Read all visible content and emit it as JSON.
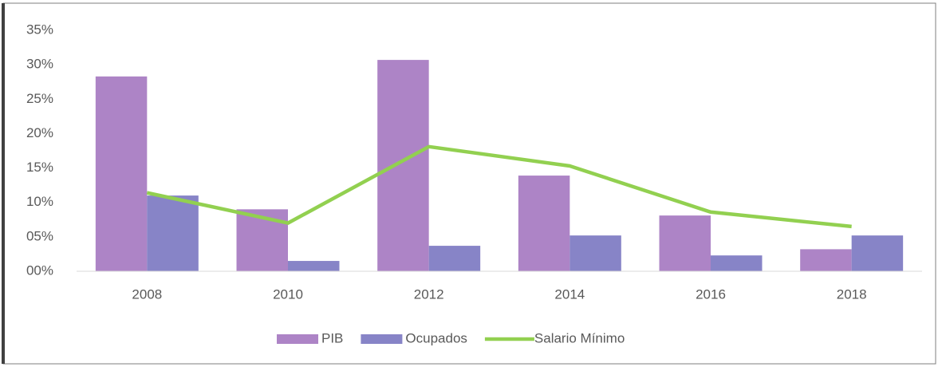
{
  "chart_data": {
    "type": "bar",
    "categories": [
      "2008",
      "2010",
      "2012",
      "2014",
      "2016",
      "2018"
    ],
    "series": [
      {
        "name": "PIB",
        "color": "#ad84c6",
        "type": "bar",
        "values": [
          28.3,
          9.0,
          30.7,
          13.9,
          8.1,
          3.2
        ]
      },
      {
        "name": "Ocupados",
        "color": "#8784c7",
        "type": "bar",
        "values": [
          11.0,
          1.5,
          3.7,
          5.2,
          2.3,
          5.2
        ]
      },
      {
        "name": "Salario Mínimo",
        "color": "#92d050",
        "type": "line",
        "values": [
          11.4,
          7.0,
          18.1,
          15.3,
          8.6,
          6.5
        ]
      }
    ],
    "ylim": [
      0,
      35
    ],
    "yticks": [
      {
        "value": 0,
        "label": "00%"
      },
      {
        "value": 5,
        "label": "05%"
      },
      {
        "value": 10,
        "label": "10%"
      },
      {
        "value": 15,
        "label": "15%"
      },
      {
        "value": 20,
        "label": "20%"
      },
      {
        "value": 25,
        "label": "25%"
      },
      {
        "value": 30,
        "label": "30%"
      },
      {
        "value": 35,
        "label": "35%"
      }
    ],
    "grid": false,
    "legend": "bottom"
  }
}
